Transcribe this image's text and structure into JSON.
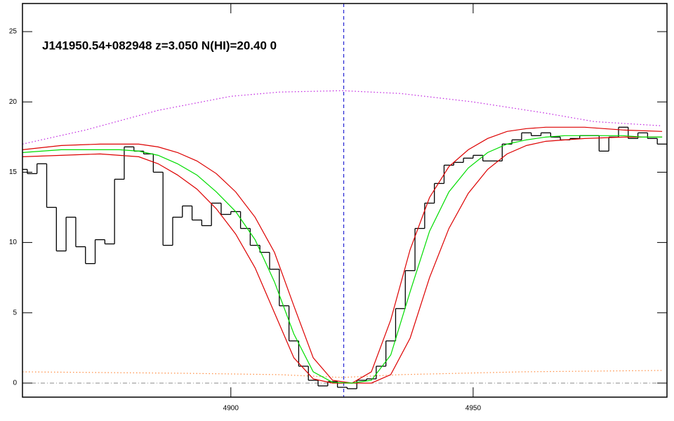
{
  "chart_data": {
    "type": "line",
    "annotation": "J141950.54+082948 z=3.050 N(HI)=20.40 0",
    "xlim": [
      4857,
      4990
    ],
    "ylim": [
      -1,
      27
    ],
    "xticks": [
      4900,
      4950
    ],
    "yticks": [
      0,
      5,
      10,
      15,
      20,
      25
    ],
    "vline": 4923.3,
    "vline_color": "#0000cc",
    "hline": 0,
    "hline_color": "#8a8a8a",
    "series": [
      {
        "color": "#ff8c40",
        "style": "dotted",
        "x": [
          4857,
          4890,
          4910,
          4923,
          4935,
          4960,
          4989
        ],
        "values": [
          0.8,
          0.7,
          0.6,
          0.4,
          0.6,
          0.8,
          0.9
        ]
      },
      {
        "color": "#c020e0",
        "style": "dotted",
        "x": [
          4857,
          4870,
          4885,
          4900,
          4910,
          4923,
          4935,
          4950,
          4965,
          4975,
          4989
        ],
        "values": [
          17.0,
          18.0,
          19.4,
          20.4,
          20.7,
          20.8,
          20.6,
          20.0,
          19.2,
          18.6,
          18.3
        ]
      },
      {
        "color": "#000000",
        "style": "steps",
        "x": [
          4857,
          4859,
          4861,
          4863,
          4865,
          4867,
          4869,
          4871,
          4873,
          4875,
          4877,
          4879,
          4881,
          4883,
          4885,
          4887,
          4889,
          4891,
          4893,
          4895,
          4897,
          4899,
          4901,
          4903,
          4905,
          4907,
          4909,
          4911,
          4913,
          4915,
          4917,
          4919,
          4921,
          4923,
          4925,
          4927,
          4929,
          4931,
          4933,
          4935,
          4937,
          4939,
          4941,
          4943,
          4945,
          4947,
          4949,
          4951,
          4953,
          4955,
          4957,
          4959,
          4961,
          4963,
          4965,
          4967,
          4969,
          4971,
          4973,
          4975,
          4977,
          4979,
          4981,
          4983,
          4985,
          4987,
          4989
        ],
        "values": [
          15.2,
          14.9,
          15.6,
          12.5,
          9.4,
          11.8,
          9.7,
          8.5,
          10.2,
          9.9,
          14.5,
          16.8,
          16.5,
          16.3,
          15.0,
          9.8,
          11.8,
          12.6,
          11.6,
          11.2,
          12.8,
          12.0,
          12.2,
          11.0,
          9.8,
          9.3,
          8.1,
          5.5,
          3.0,
          1.2,
          0.2,
          -0.2,
          0.1,
          -0.3,
          -0.4,
          0.2,
          0.3,
          1.2,
          3.0,
          5.3,
          8.0,
          11.0,
          12.8,
          14.2,
          15.5,
          15.7,
          16.0,
          16.2,
          15.8,
          15.8,
          17.0,
          17.3,
          17.8,
          17.6,
          17.8,
          17.5,
          17.3,
          17.4,
          17.6,
          17.6,
          16.5,
          17.5,
          18.2,
          17.4,
          17.8,
          17.4,
          17.0
        ]
      },
      {
        "color": "#dd0000",
        "style": "solid",
        "x": [
          4857,
          4865,
          4873,
          4881,
          4885,
          4889,
          4893,
          4897,
          4901,
          4905,
          4909,
          4913,
          4917,
          4921,
          4925,
          4929,
          4933,
          4937,
          4941,
          4945,
          4949,
          4953,
          4957,
          4961,
          4965,
          4973,
          4981,
          4989
        ],
        "values": [
          16.6,
          16.9,
          17.0,
          17.0,
          16.8,
          16.4,
          15.8,
          14.9,
          13.6,
          11.8,
          9.3,
          5.5,
          1.8,
          0.2,
          0.0,
          0.8,
          4.5,
          9.5,
          13.2,
          15.4,
          16.6,
          17.4,
          17.9,
          18.1,
          18.2,
          18.2,
          18.0,
          17.9
        ]
      },
      {
        "color": "#dd0000",
        "style": "solid",
        "x": [
          4857,
          4865,
          4873,
          4881,
          4885,
          4889,
          4893,
          4897,
          4901,
          4905,
          4909,
          4913,
          4917,
          4921,
          4925,
          4929,
          4933,
          4937,
          4941,
          4945,
          4949,
          4953,
          4957,
          4961,
          4965,
          4973,
          4981,
          4989
        ],
        "values": [
          16.1,
          16.2,
          16.3,
          16.1,
          15.6,
          14.8,
          13.8,
          12.4,
          10.6,
          8.2,
          5.0,
          1.8,
          0.3,
          0.0,
          0.0,
          0.0,
          0.6,
          3.2,
          7.5,
          11.0,
          13.5,
          15.2,
          16.3,
          16.9,
          17.2,
          17.4,
          17.5,
          17.5
        ]
      },
      {
        "color": "#00dd00",
        "style": "solid",
        "x": [
          4857,
          4861,
          4865,
          4869,
          4873,
          4877,
          4881,
          4885,
          4889,
          4893,
          4897,
          4901,
          4905,
          4909,
          4913,
          4917,
          4921,
          4925,
          4929,
          4933,
          4937,
          4941,
          4945,
          4949,
          4953,
          4957,
          4961,
          4965,
          4969,
          4973,
          4977,
          4981,
          4985,
          4989
        ],
        "values": [
          16.4,
          16.5,
          16.6,
          16.6,
          16.6,
          16.6,
          16.5,
          16.2,
          15.6,
          14.8,
          13.6,
          12.2,
          10.2,
          7.2,
          3.5,
          0.8,
          0.05,
          0,
          0.2,
          2.0,
          6.5,
          10.8,
          13.6,
          15.3,
          16.4,
          17.0,
          17.3,
          17.5,
          17.6,
          17.6,
          17.6,
          17.6,
          17.5,
          17.5
        ]
      }
    ]
  }
}
